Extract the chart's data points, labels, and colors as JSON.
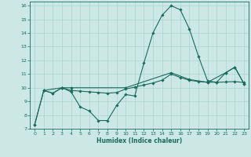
{
  "xlabel": "Humidex (Indice chaleur)",
  "bg_color": "#cce8e4",
  "line_color": "#1a6b5a",
  "grid_color": "#aad4cc",
  "xlim": [
    -0.5,
    23.5
  ],
  "ylim": [
    7,
    16.3
  ],
  "xticks": [
    0,
    1,
    2,
    3,
    4,
    5,
    6,
    7,
    8,
    9,
    10,
    11,
    12,
    13,
    14,
    15,
    16,
    17,
    18,
    19,
    20,
    21,
    22,
    23
  ],
  "yticks": [
    7,
    8,
    9,
    10,
    11,
    12,
    13,
    14,
    15,
    16
  ],
  "line1_x": [
    0,
    1,
    2,
    3,
    4,
    5,
    6,
    7,
    8,
    9,
    10,
    11,
    12,
    13,
    14,
    15,
    16,
    17,
    18,
    19,
    20,
    21,
    22,
    23
  ],
  "line1_y": [
    7.3,
    9.8,
    9.6,
    10.0,
    9.7,
    8.6,
    8.3,
    7.6,
    7.6,
    8.7,
    9.5,
    9.4,
    11.8,
    14.0,
    15.3,
    16.0,
    15.7,
    14.3,
    12.3,
    10.5,
    10.4,
    11.1,
    11.5,
    10.3
  ],
  "line2_x": [
    0,
    1,
    2,
    3,
    4,
    5,
    6,
    7,
    8,
    9,
    10,
    11,
    12,
    13,
    14,
    15,
    16,
    17,
    18,
    19,
    20,
    21,
    22,
    23
  ],
  "line2_y": [
    7.3,
    9.8,
    9.6,
    10.0,
    9.8,
    9.75,
    9.7,
    9.65,
    9.6,
    9.65,
    9.9,
    10.05,
    10.2,
    10.35,
    10.55,
    11.0,
    10.75,
    10.55,
    10.45,
    10.4,
    10.4,
    10.42,
    10.45,
    10.38
  ],
  "line3_x": [
    1,
    3,
    4,
    10,
    15,
    17,
    19,
    21,
    22,
    23
  ],
  "line3_y": [
    9.8,
    10.0,
    10.0,
    10.0,
    11.1,
    10.6,
    10.4,
    11.1,
    11.5,
    10.3
  ]
}
